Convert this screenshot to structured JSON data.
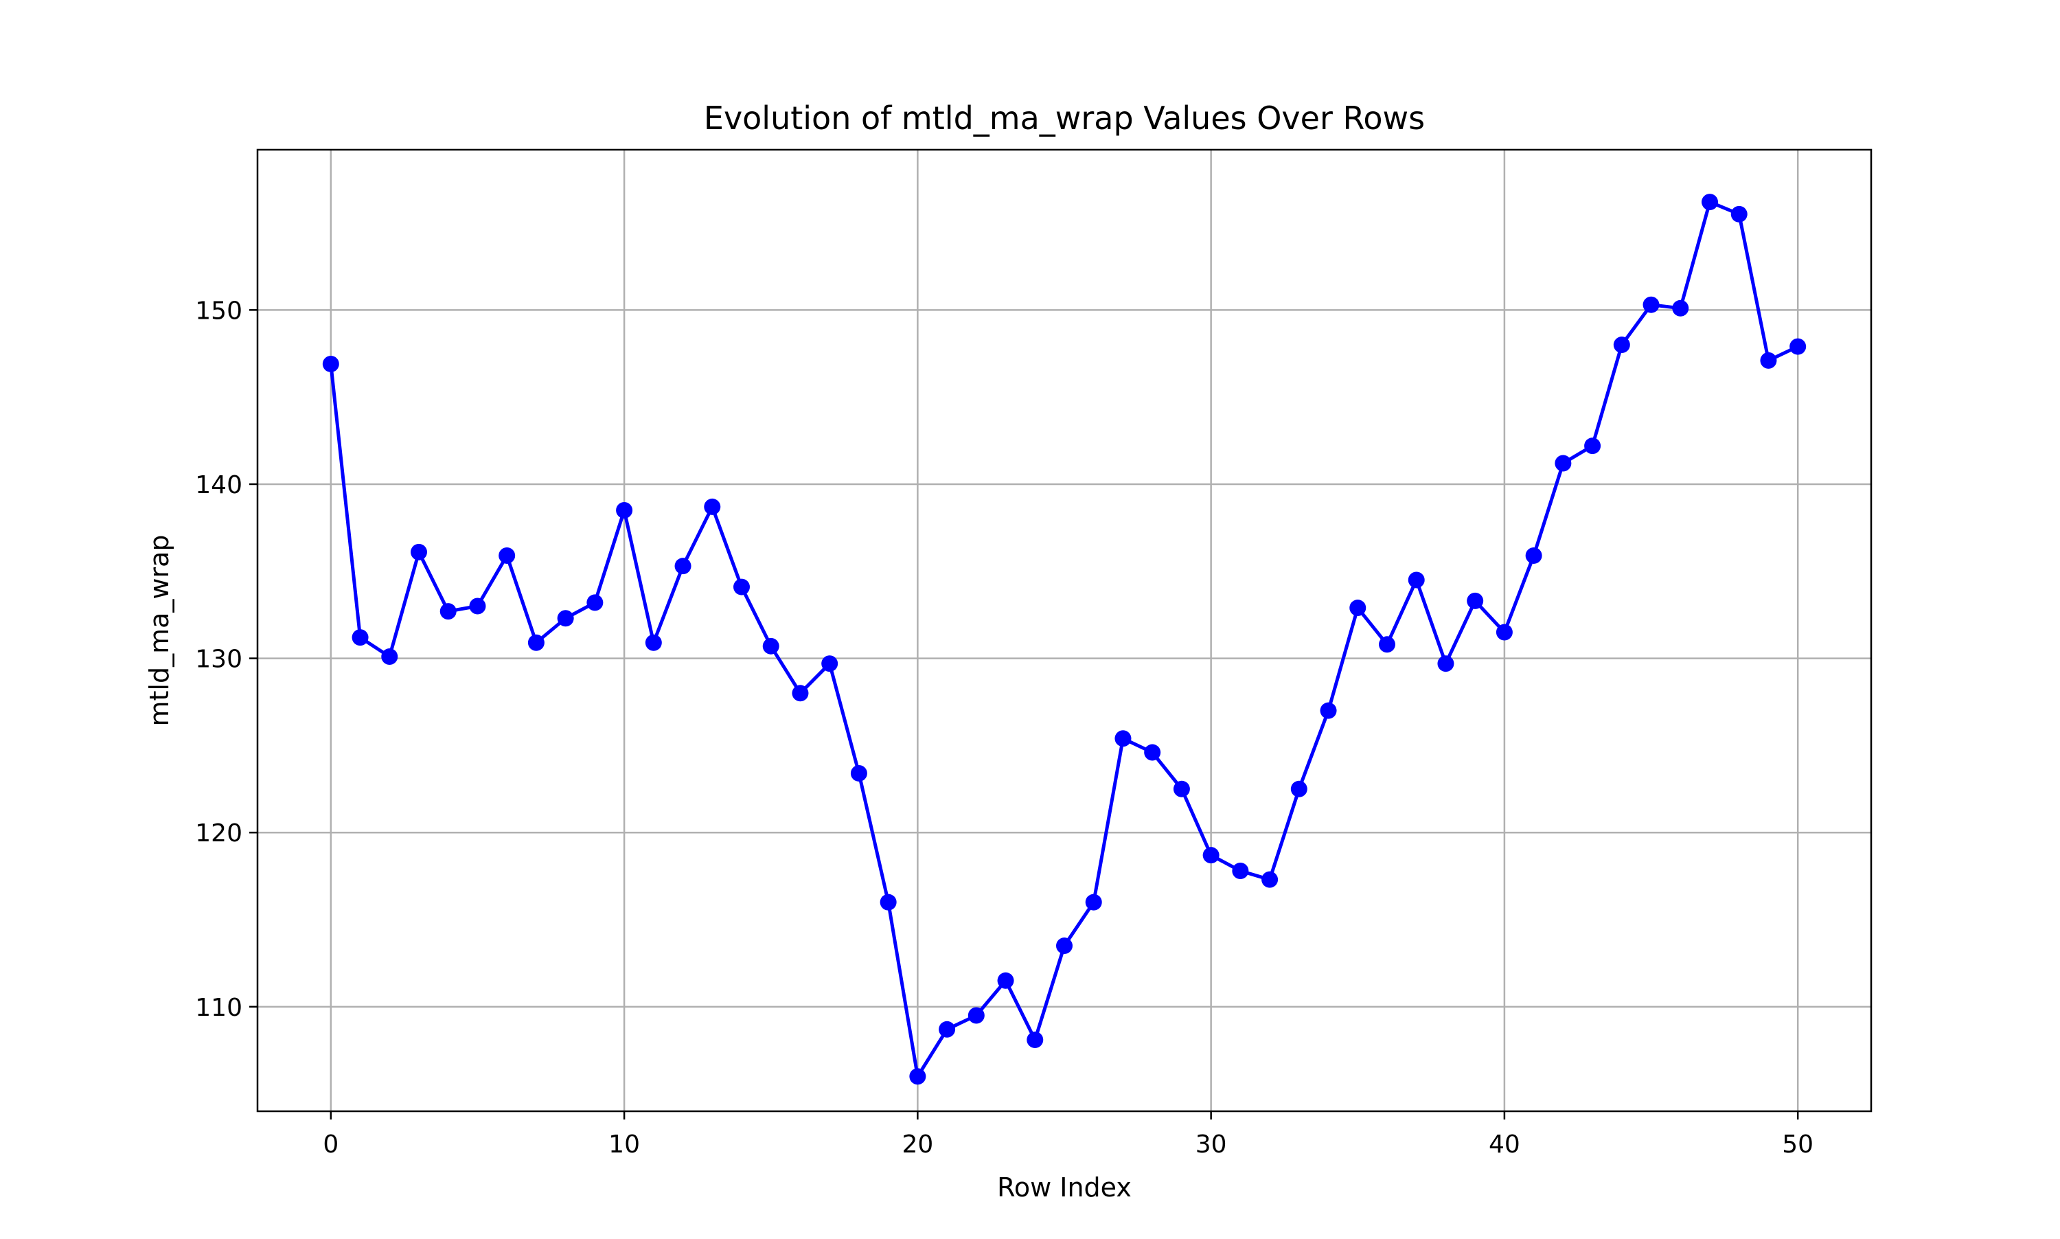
{
  "chart_data": {
    "type": "line",
    "title": "Evolution of mtld_ma_wrap Values Over Rows",
    "xlabel": "Row Index",
    "ylabel": "mtld_ma_wrap",
    "xlim": [
      -2.5,
      52.5
    ],
    "ylim": [
      104,
      159.2
    ],
    "xticks": [
      0,
      10,
      20,
      30,
      40,
      50
    ],
    "yticks": [
      110,
      120,
      130,
      140,
      150
    ],
    "grid": true,
    "colors": {
      "line": "#0000ff",
      "marker": "#0000ff",
      "grid": "#b0b0b0"
    },
    "series": [
      {
        "marker": "circle",
        "x": [
          0,
          1,
          2,
          3,
          4,
          5,
          6,
          7,
          8,
          9,
          10,
          11,
          12,
          13,
          14,
          15,
          16,
          17,
          18,
          19,
          20,
          21,
          22,
          23,
          24,
          25,
          26,
          27,
          28,
          29,
          30,
          31,
          32,
          33,
          34,
          35,
          36,
          37,
          38,
          39,
          40,
          41,
          42,
          43,
          44,
          45,
          46,
          47,
          48,
          49,
          50
        ],
        "y": [
          146.9,
          131.2,
          130.1,
          136.1,
          132.7,
          133.0,
          135.9,
          130.9,
          132.3,
          133.2,
          138.5,
          130.9,
          135.3,
          138.7,
          134.1,
          130.7,
          128.0,
          129.7,
          123.4,
          116.0,
          106.0,
          108.7,
          109.5,
          111.5,
          108.1,
          113.5,
          116.0,
          125.4,
          124.6,
          122.5,
          118.7,
          117.8,
          117.3,
          122.5,
          127.0,
          132.9,
          130.8,
          134.5,
          129.7,
          133.3,
          131.5,
          135.9,
          141.2,
          142.2,
          148.0,
          150.3,
          150.1,
          156.2,
          155.5,
          147.1,
          147.9
        ]
      }
    ]
  }
}
